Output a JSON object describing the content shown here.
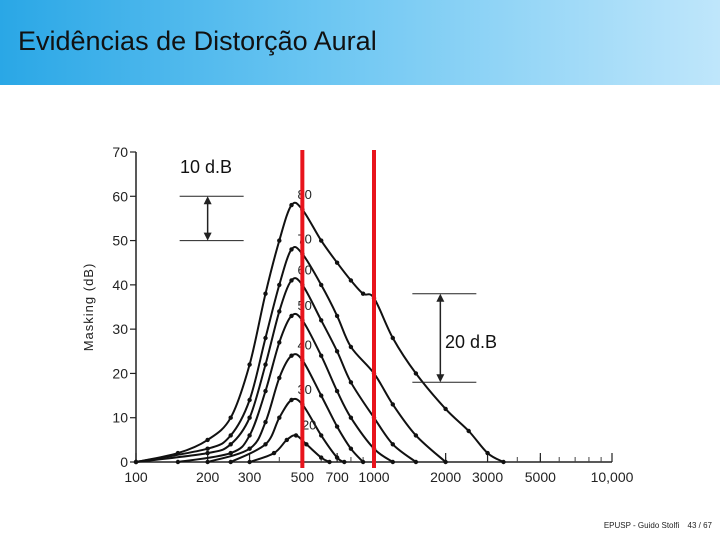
{
  "slide": {
    "title": "Evidências de Distorção Aural",
    "footer_author": "EPUSP - Guido Stolfi",
    "footer_page": "43 / 67"
  },
  "chart_data": {
    "type": "line",
    "xlabel": "",
    "ylabel": "Masking (dB)",
    "xscale": "log",
    "xlim": [
      100,
      10000
    ],
    "ylim": [
      0,
      70
    ],
    "x_ticks": [
      100,
      200,
      300,
      500,
      700,
      1000,
      2000,
      3000,
      5000,
      10000
    ],
    "x_tick_labels": [
      "100",
      "200",
      "300",
      "500",
      "700",
      "1000",
      "2000",
      "3000",
      "5000",
      "10,000"
    ],
    "y_ticks": [
      0,
      10,
      20,
      30,
      40,
      50,
      60,
      70
    ],
    "y_tick_labels": [
      "0",
      "10",
      "20",
      "30",
      "40",
      "50",
      "60",
      "70"
    ],
    "series": [
      {
        "name": "80",
        "points": [
          [
            100,
            0
          ],
          [
            150,
            2
          ],
          [
            200,
            5
          ],
          [
            250,
            10
          ],
          [
            300,
            22
          ],
          [
            350,
            38
          ],
          [
            400,
            50
          ],
          [
            450,
            58
          ],
          [
            500,
            57
          ],
          [
            600,
            50
          ],
          [
            700,
            45
          ],
          [
            800,
            41
          ],
          [
            900,
            38
          ],
          [
            1000,
            37
          ],
          [
            1200,
            28
          ],
          [
            1500,
            20
          ],
          [
            2000,
            12
          ],
          [
            2500,
            7
          ],
          [
            3000,
            2
          ],
          [
            3500,
            0
          ]
        ]
      },
      {
        "name": "70",
        "points": [
          [
            100,
            0
          ],
          [
            200,
            3
          ],
          [
            250,
            6
          ],
          [
            300,
            14
          ],
          [
            350,
            28
          ],
          [
            400,
            40
          ],
          [
            450,
            48
          ],
          [
            500,
            47
          ],
          [
            600,
            40
          ],
          [
            700,
            33
          ],
          [
            800,
            26
          ],
          [
            1000,
            20
          ],
          [
            1200,
            13
          ],
          [
            1500,
            6
          ],
          [
            2000,
            0
          ]
        ]
      },
      {
        "name": "60",
        "points": [
          [
            100,
            0
          ],
          [
            200,
            2
          ],
          [
            250,
            4
          ],
          [
            300,
            10
          ],
          [
            350,
            22
          ],
          [
            400,
            34
          ],
          [
            450,
            41
          ],
          [
            500,
            40
          ],
          [
            600,
            32
          ],
          [
            700,
            25
          ],
          [
            800,
            18
          ],
          [
            1000,
            10
          ],
          [
            1200,
            4
          ],
          [
            1500,
            0
          ]
        ]
      },
      {
        "name": "50",
        "points": [
          [
            150,
            0
          ],
          [
            250,
            2
          ],
          [
            300,
            6
          ],
          [
            350,
            16
          ],
          [
            400,
            27
          ],
          [
            450,
            33
          ],
          [
            500,
            32
          ],
          [
            600,
            24
          ],
          [
            700,
            16
          ],
          [
            800,
            10
          ],
          [
            1000,
            3
          ],
          [
            1200,
            0
          ]
        ]
      },
      {
        "name": "40",
        "points": [
          [
            200,
            0
          ],
          [
            300,
            3
          ],
          [
            350,
            9
          ],
          [
            400,
            19
          ],
          [
            450,
            24
          ],
          [
            500,
            23
          ],
          [
            600,
            15
          ],
          [
            700,
            8
          ],
          [
            800,
            3
          ],
          [
            900,
            0
          ]
        ]
      },
      {
        "name": "30",
        "points": [
          [
            250,
            0
          ],
          [
            350,
            4
          ],
          [
            400,
            10
          ],
          [
            450,
            14
          ],
          [
            500,
            13
          ],
          [
            600,
            6
          ],
          [
            700,
            1
          ],
          [
            750,
            0
          ]
        ]
      },
      {
        "name": "20",
        "points": [
          [
            300,
            0
          ],
          [
            380,
            2
          ],
          [
            430,
            5
          ],
          [
            470,
            6
          ],
          [
            520,
            4
          ],
          [
            600,
            1
          ],
          [
            650,
            0
          ]
        ]
      }
    ],
    "markers": [
      {
        "x": 500,
        "color": "#e8141c"
      },
      {
        "x": 1000,
        "color": "#e8141c"
      }
    ],
    "annotations": [
      {
        "text": "10 d.B",
        "x": 200,
        "y_from": 50,
        "y_to": 60
      },
      {
        "text": "20 d.B",
        "x": 1900,
        "y_from": 18,
        "y_to": 38
      }
    ]
  }
}
